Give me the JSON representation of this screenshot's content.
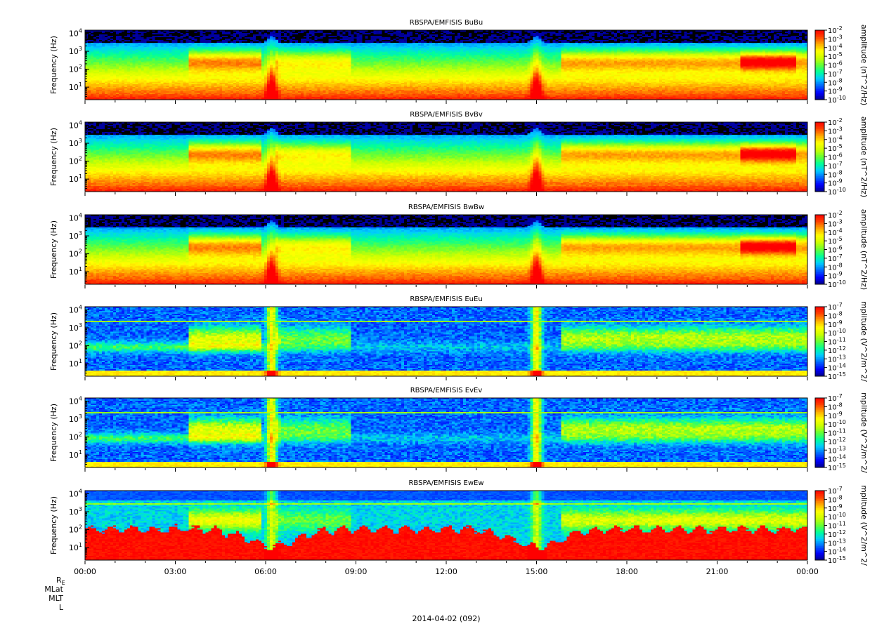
{
  "chart_data": [
    {
      "type": "heatmap",
      "title": "RBSPA/EMFISIS  BuBu",
      "ylabel": "Frequency (Hz)",
      "y_scale": "log",
      "y_range": [
        2,
        15000
      ],
      "y_ticks": [
        {
          "exp": "1",
          "value": 10
        },
        {
          "exp": "2",
          "value": 100
        },
        {
          "exp": "3",
          "value": 1000
        },
        {
          "exp": "4",
          "value": 10000
        }
      ],
      "x_range_hours": [
        0,
        24
      ],
      "colorbar": {
        "label": "amplitude (nT^2/Hz)",
        "scale": "log",
        "range_exp": [
          -10,
          -2
        ],
        "ticks": [
          {
            "exp": "-2",
            "value": -2
          },
          {
            "exp": "-3",
            "value": -3
          },
          {
            "exp": "-4",
            "value": -4
          },
          {
            "exp": "-5",
            "value": -5
          },
          {
            "exp": "-6",
            "value": -6
          },
          {
            "exp": "-7",
            "value": -7
          },
          {
            "exp": "-8",
            "value": -8
          },
          {
            "exp": "-9",
            "value": -9
          },
          {
            "exp": "-10",
            "value": -10
          }
        ]
      },
      "background": "magnetic",
      "chorus_top_khz": 0.6,
      "note": "chorus band enhancement ~100-1000 Hz between 03:30-06:00 and 16:00-24:00; spikes near 06:15 and 15:00"
    },
    {
      "type": "heatmap",
      "title": "RBSPA/EMFISIS  BvBv",
      "ylabel": "Frequency (Hz)",
      "y_scale": "log",
      "y_range": [
        2,
        15000
      ],
      "y_ticks": [
        {
          "exp": "1",
          "value": 10
        },
        {
          "exp": "2",
          "value": 100
        },
        {
          "exp": "3",
          "value": 1000
        },
        {
          "exp": "4",
          "value": 10000
        }
      ],
      "x_range_hours": [
        0,
        24
      ],
      "colorbar": {
        "label": "amplitude (nT^2/Hz)",
        "scale": "log",
        "range_exp": [
          -10,
          -2
        ],
        "ticks": [
          {
            "exp": "-2",
            "value": -2
          },
          {
            "exp": "-3",
            "value": -3
          },
          {
            "exp": "-4",
            "value": -4
          },
          {
            "exp": "-5",
            "value": -5
          },
          {
            "exp": "-6",
            "value": -6
          },
          {
            "exp": "-7",
            "value": -7
          },
          {
            "exp": "-8",
            "value": -8
          },
          {
            "exp": "-9",
            "value": -9
          },
          {
            "exp": "-10",
            "value": -10
          }
        ]
      },
      "background": "magnetic"
    },
    {
      "type": "heatmap",
      "title": "RBSPA/EMFISIS  BwBw",
      "ylabel": "Frequency (Hz)",
      "y_scale": "log",
      "y_range": [
        2,
        15000
      ],
      "y_ticks": [
        {
          "exp": "1",
          "value": 10
        },
        {
          "exp": "2",
          "value": 100
        },
        {
          "exp": "3",
          "value": 1000
        },
        {
          "exp": "4",
          "value": 10000
        }
      ],
      "x_range_hours": [
        0,
        24
      ],
      "colorbar": {
        "label": "amplitude (nT^2/Hz)",
        "scale": "log",
        "range_exp": [
          -10,
          -2
        ],
        "ticks": [
          {
            "exp": "-2",
            "value": -2
          },
          {
            "exp": "-3",
            "value": -3
          },
          {
            "exp": "-4",
            "value": -4
          },
          {
            "exp": "-5",
            "value": -5
          },
          {
            "exp": "-6",
            "value": -6
          },
          {
            "exp": "-7",
            "value": -7
          },
          {
            "exp": "-8",
            "value": -8
          },
          {
            "exp": "-9",
            "value": -9
          },
          {
            "exp": "-10",
            "value": -10
          }
        ]
      },
      "background": "magnetic"
    },
    {
      "type": "heatmap",
      "title": "RBSPA/EMFISIS  EuEu",
      "ylabel": "Frequency (Hz)",
      "y_scale": "log",
      "y_range": [
        2,
        15000
      ],
      "y_ticks": [
        {
          "exp": "1",
          "value": 10
        },
        {
          "exp": "2",
          "value": 100
        },
        {
          "exp": "3",
          "value": 1000
        },
        {
          "exp": "4",
          "value": 10000
        }
      ],
      "x_range_hours": [
        0,
        24
      ],
      "colorbar": {
        "label": "mplitude (V^2/m^2/",
        "scale": "log",
        "range_exp": [
          -15,
          -7
        ],
        "ticks": [
          {
            "exp": "-7",
            "value": -7
          },
          {
            "exp": "-8",
            "value": -8
          },
          {
            "exp": "-9",
            "value": -9
          },
          {
            "exp": "-10",
            "value": -10
          },
          {
            "exp": "-11",
            "value": -11
          },
          {
            "exp": "-12",
            "value": -12
          },
          {
            "exp": "-13",
            "value": -13
          },
          {
            "exp": "-14",
            "value": -14
          },
          {
            "exp": "-15",
            "value": -15
          }
        ]
      },
      "background": "electric"
    },
    {
      "type": "heatmap",
      "title": "RBSPA/EMFISIS  EvEv",
      "ylabel": "Frequency (Hz)",
      "y_scale": "log",
      "y_range": [
        2,
        15000
      ],
      "y_ticks": [
        {
          "exp": "1",
          "value": 10
        },
        {
          "exp": "2",
          "value": 100
        },
        {
          "exp": "3",
          "value": 1000
        },
        {
          "exp": "4",
          "value": 10000
        }
      ],
      "x_range_hours": [
        0,
        24
      ],
      "colorbar": {
        "label": "mplitude (V^2/m^2/",
        "scale": "log",
        "range_exp": [
          -15,
          -7
        ],
        "ticks": [
          {
            "exp": "-7",
            "value": -7
          },
          {
            "exp": "-8",
            "value": -8
          },
          {
            "exp": "-9",
            "value": -9
          },
          {
            "exp": "-10",
            "value": -10
          },
          {
            "exp": "-11",
            "value": -11
          },
          {
            "exp": "-12",
            "value": -12
          },
          {
            "exp": "-13",
            "value": -13
          },
          {
            "exp": "-14",
            "value": -14
          },
          {
            "exp": "-15",
            "value": -15
          }
        ]
      },
      "background": "electric"
    },
    {
      "type": "heatmap",
      "title": "RBSPA/EMFISIS  EwEw",
      "ylabel": "Frequency (Hz)",
      "y_scale": "log",
      "y_range": [
        2,
        15000
      ],
      "y_ticks": [
        {
          "exp": "1",
          "value": 10
        },
        {
          "exp": "2",
          "value": 100
        },
        {
          "exp": "3",
          "value": 1000
        },
        {
          "exp": "4",
          "value": 10000
        }
      ],
      "x_range_hours": [
        0,
        24
      ],
      "colorbar": {
        "label": "mplitude (V^2/m^2/",
        "scale": "log",
        "range_exp": [
          -15,
          -7
        ],
        "ticks": [
          {
            "exp": "-7",
            "value": -7
          },
          {
            "exp": "-8",
            "value": -8
          },
          {
            "exp": "-9",
            "value": -9
          },
          {
            "exp": "-10",
            "value": -10
          },
          {
            "exp": "-11",
            "value": -11
          },
          {
            "exp": "-12",
            "value": -12
          },
          {
            "exp": "-13",
            "value": -13
          },
          {
            "exp": "-14",
            "value": -14
          },
          {
            "exp": "-15",
            "value": -15
          }
        ]
      },
      "background": "ew"
    }
  ],
  "x_axis": {
    "tick_labels": [
      "00:00",
      "03:00",
      "06:00",
      "09:00",
      "12:00",
      "15:00",
      "18:00",
      "21:00",
      "00:00"
    ],
    "tick_hours": [
      0,
      3,
      6,
      9,
      12,
      15,
      18,
      21,
      24
    ],
    "minor_tick_hours": 1
  },
  "ephemeris_labels": {
    "re_main": "R",
    "re_sub": "E",
    "mlat": "MLat",
    "mlt": "MLT",
    "l": "L"
  },
  "date_label": "2014-04-02 (092)",
  "events": {
    "perigee_hours": [
      6.2,
      15.0
    ]
  },
  "colors": {
    "colormap": [
      "#00008b",
      "#0000ff",
      "#0066ff",
      "#00ccff",
      "#00ff99",
      "#66ff33",
      "#ccff00",
      "#ffff00",
      "#ffaa00",
      "#ff4400",
      "#ff0000"
    ],
    "empty": "#000000",
    "background": "#ffffff"
  }
}
